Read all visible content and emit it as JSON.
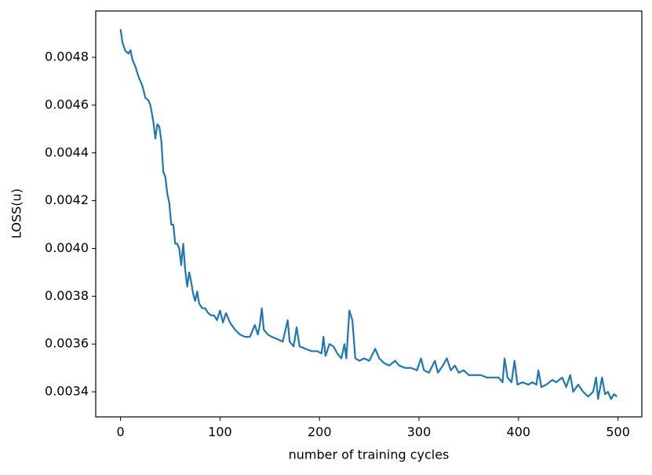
{
  "chart_data": {
    "type": "line",
    "xlabel": "number of training cycles",
    "ylabel": "LOSS(u)",
    "color": "#1f77b4",
    "x": [
      0,
      2,
      5,
      8,
      10,
      12,
      15,
      18,
      22,
      25,
      28,
      30,
      33,
      35,
      37,
      39,
      41,
      43,
      45,
      47,
      49,
      51,
      53,
      55,
      57,
      59,
      61,
      63,
      65,
      67,
      69,
      71,
      73,
      75,
      77,
      79,
      82,
      85,
      88,
      91,
      94,
      97,
      100,
      103,
      106,
      110,
      115,
      120,
      125,
      130,
      135,
      138,
      140,
      142,
      144,
      148,
      152,
      158,
      163,
      168,
      170,
      174,
      177,
      180,
      186,
      192,
      198,
      202,
      204,
      206,
      210,
      214,
      218,
      222,
      225,
      227,
      230,
      233,
      236,
      240,
      245,
      250,
      256,
      260,
      265,
      270,
      276,
      280,
      286,
      292,
      298,
      302,
      305,
      310,
      316,
      319,
      324,
      328,
      332,
      336,
      340,
      345,
      350,
      356,
      362,
      368,
      374,
      380,
      384,
      386,
      389,
      393,
      396,
      399,
      404,
      410,
      414,
      418,
      420,
      423,
      428,
      434,
      438,
      444,
      448,
      452,
      455,
      460,
      465,
      470,
      475,
      478,
      480,
      484,
      487,
      490,
      493,
      496,
      499
    ],
    "values": [
      0.004918,
      0.00486,
      0.004826,
      0.004816,
      0.00483,
      0.00479,
      0.00476,
      0.00472,
      0.00468,
      0.00463,
      0.00462,
      0.0046,
      0.00453,
      0.00446,
      0.00452,
      0.00451,
      0.00445,
      0.00432,
      0.0043,
      0.00423,
      0.00419,
      0.0041,
      0.0041,
      0.00402,
      0.00402,
      0.004,
      0.00393,
      0.00402,
      0.00391,
      0.00384,
      0.0039,
      0.00386,
      0.00381,
      0.00378,
      0.00382,
      0.00377,
      0.00375,
      0.00375,
      0.00373,
      0.00372,
      0.00372,
      0.0037,
      0.00374,
      0.00369,
      0.00373,
      0.00369,
      0.00366,
      0.00364,
      0.00363,
      0.00363,
      0.00368,
      0.00364,
      0.00368,
      0.00375,
      0.00366,
      0.00364,
      0.00363,
      0.00362,
      0.00361,
      0.0037,
      0.00361,
      0.00359,
      0.00367,
      0.00359,
      0.00358,
      0.00357,
      0.00357,
      0.00356,
      0.00363,
      0.00355,
      0.0036,
      0.00359,
      0.00356,
      0.00354,
      0.0036,
      0.00354,
      0.00374,
      0.0037,
      0.00354,
      0.00353,
      0.00354,
      0.00353,
      0.00358,
      0.00354,
      0.00352,
      0.00351,
      0.00353,
      0.00351,
      0.0035,
      0.0035,
      0.00349,
      0.00354,
      0.00349,
      0.00348,
      0.00353,
      0.00348,
      0.00351,
      0.00354,
      0.00349,
      0.00351,
      0.00348,
      0.00349,
      0.00347,
      0.00347,
      0.00347,
      0.00346,
      0.00346,
      0.00346,
      0.00344,
      0.00354,
      0.00346,
      0.00344,
      0.00353,
      0.00343,
      0.00344,
      0.00343,
      0.00344,
      0.00343,
      0.00349,
      0.00342,
      0.00343,
      0.00345,
      0.00344,
      0.00346,
      0.00342,
      0.00347,
      0.0034,
      0.00343,
      0.0034,
      0.00338,
      0.0034,
      0.00346,
      0.00337,
      0.00346,
      0.00339,
      0.0034,
      0.00337,
      0.00339,
      0.00338
    ],
    "xlim": [
      -24.95,
      523.95
    ],
    "xticks": [
      0,
      100,
      200,
      300,
      400,
      500
    ],
    "ylim": [
      0.003295,
      0.004994
    ],
    "yticks": [
      0.0034,
      0.0036,
      0.0038,
      {
        "value": 0.004,
        "label": "0.0040"
      },
      0.0042,
      0.0044,
      0.0046,
      0.0048
    ],
    "grid": false
  }
}
